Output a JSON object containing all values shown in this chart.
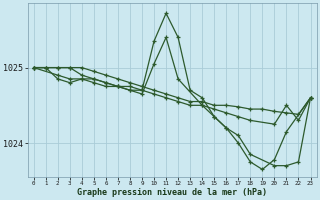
{
  "title": "Graphe pression niveau de la mer (hPa)",
  "bg_color": "#cce8f0",
  "grid_color": "#aaccd8",
  "line_color": "#2d5a2d",
  "xlim": [
    -0.5,
    23.5
  ],
  "ylim": [
    1023.55,
    1025.85
  ],
  "yticks": [
    1024,
    1025
  ],
  "xticks": [
    0,
    1,
    2,
    3,
    4,
    5,
    6,
    7,
    8,
    9,
    10,
    11,
    12,
    13,
    14,
    15,
    16,
    17,
    18,
    19,
    20,
    21,
    22,
    23
  ],
  "series": [
    {
      "x": [
        0,
        1,
        2,
        3,
        4,
        5,
        6,
        7,
        8,
        9,
        10,
        11,
        12,
        13,
        14,
        15,
        16,
        17,
        18,
        19,
        20,
        21,
        22,
        23
      ],
      "y": [
        1025.0,
        1025.0,
        1025.0,
        1025.0,
        1025.0,
        1024.95,
        1024.9,
        1024.85,
        1024.8,
        1024.75,
        1024.7,
        1024.65,
        1024.6,
        1024.55,
        1024.55,
        1024.5,
        1024.5,
        1024.48,
        1024.45,
        1024.45,
        1024.42,
        1024.4,
        1024.38,
        1024.6
      ]
    },
    {
      "x": [
        0,
        1,
        2,
        3,
        4,
        5,
        6,
        7,
        8,
        9,
        10,
        11,
        12,
        13,
        14,
        15,
        16,
        17,
        18,
        20,
        21,
        22,
        23
      ],
      "y": [
        1025.0,
        1025.0,
        1025.0,
        1025.0,
        1024.9,
        1024.85,
        1024.8,
        1024.75,
        1024.75,
        1024.7,
        1025.35,
        1025.72,
        1025.4,
        1024.7,
        1024.6,
        1024.35,
        1024.2,
        1024.1,
        1023.85,
        1023.7,
        1023.7,
        1023.75,
        1024.6
      ]
    },
    {
      "x": [
        0,
        2,
        3,
        4,
        5,
        6,
        7,
        8,
        9,
        10,
        11,
        12,
        14,
        15,
        16,
        17,
        18,
        19,
        20,
        21,
        23
      ],
      "y": [
        1025.0,
        1024.9,
        1024.85,
        1024.85,
        1024.8,
        1024.75,
        1024.75,
        1024.7,
        1024.65,
        1025.05,
        1025.4,
        1024.85,
        1024.5,
        1024.35,
        1024.2,
        1024.0,
        1023.75,
        1023.65,
        1023.78,
        1024.15,
        1024.6
      ]
    },
    {
      "x": [
        0,
        1,
        2,
        3,
        4,
        5,
        6,
        7,
        8,
        9,
        10,
        11,
        12,
        13,
        14,
        15,
        16,
        17,
        18,
        20,
        21,
        22,
        23
      ],
      "y": [
        1025.0,
        1025.0,
        1024.85,
        1024.8,
        1024.85,
        1024.85,
        1024.8,
        1024.75,
        1024.7,
        1024.7,
        1024.65,
        1024.6,
        1024.55,
        1024.5,
        1024.5,
        1024.45,
        1024.4,
        1024.35,
        1024.3,
        1024.25,
        1024.5,
        1024.3,
        1024.6
      ]
    }
  ]
}
